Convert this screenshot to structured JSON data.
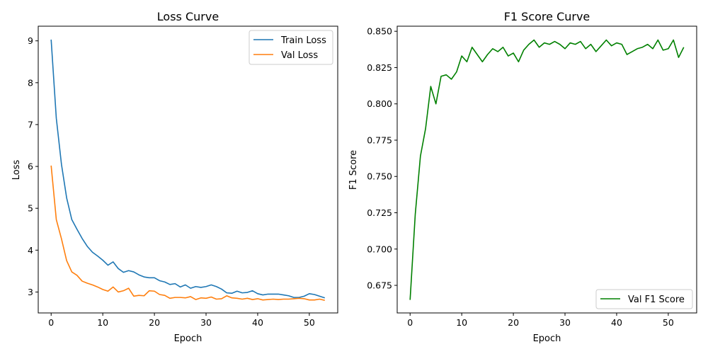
{
  "chart_data": [
    {
      "type": "line",
      "title": "Loss Curve",
      "xlabel": "Epoch",
      "ylabel": "Loss",
      "xlim": [
        -2.5,
        55.5
      ],
      "ylim": [
        2.5,
        9.35
      ],
      "xticks": [
        0,
        10,
        20,
        30,
        40,
        50
      ],
      "yticks": [
        3,
        4,
        5,
        6,
        7,
        8,
        9
      ],
      "legend_position": "top-right",
      "x": [
        0,
        1,
        2,
        3,
        4,
        5,
        6,
        7,
        8,
        9,
        10,
        11,
        12,
        13,
        14,
        15,
        16,
        17,
        18,
        19,
        20,
        21,
        22,
        23,
        24,
        25,
        26,
        27,
        28,
        29,
        30,
        31,
        32,
        33,
        34,
        35,
        36,
        37,
        38,
        39,
        40,
        41,
        42,
        43,
        44,
        45,
        46,
        47,
        48,
        49,
        50,
        51,
        52,
        53
      ],
      "series": [
        {
          "name": "Train Loss",
          "color": "#1f77b4",
          "values": [
            9.03,
            7.15,
            6.05,
            5.25,
            4.73,
            4.5,
            4.28,
            4.09,
            3.95,
            3.86,
            3.76,
            3.64,
            3.72,
            3.56,
            3.47,
            3.51,
            3.48,
            3.41,
            3.36,
            3.34,
            3.34,
            3.27,
            3.24,
            3.18,
            3.2,
            3.12,
            3.17,
            3.09,
            3.13,
            3.11,
            3.13,
            3.17,
            3.13,
            3.07,
            2.98,
            2.97,
            3.02,
            2.98,
            2.99,
            3.03,
            2.96,
            2.93,
            2.95,
            2.95,
            2.95,
            2.93,
            2.91,
            2.87,
            2.87,
            2.9,
            2.96,
            2.94,
            2.9,
            2.86
          ]
        },
        {
          "name": "Val Loss",
          "color": "#ff7f0e",
          "values": [
            6.02,
            4.73,
            4.27,
            3.75,
            3.48,
            3.4,
            3.26,
            3.21,
            3.17,
            3.12,
            3.06,
            3.02,
            3.12,
            3.0,
            3.03,
            3.09,
            2.9,
            2.92,
            2.91,
            3.03,
            3.02,
            2.94,
            2.92,
            2.85,
            2.87,
            2.87,
            2.86,
            2.89,
            2.82,
            2.86,
            2.85,
            2.88,
            2.83,
            2.84,
            2.91,
            2.86,
            2.85,
            2.83,
            2.85,
            2.82,
            2.84,
            2.81,
            2.82,
            2.83,
            2.82,
            2.83,
            2.83,
            2.84,
            2.85,
            2.84,
            2.81,
            2.81,
            2.83,
            2.8
          ]
        }
      ]
    },
    {
      "type": "line",
      "title": "F1 Score Curve",
      "xlabel": "Epoch",
      "ylabel": "F1 Score",
      "xlim": [
        -2.5,
        55.5
      ],
      "ylim": [
        0.656,
        0.8535
      ],
      "xticks": [
        0,
        10,
        20,
        30,
        40,
        50
      ],
      "yticks": [
        0.675,
        0.7,
        0.725,
        0.75,
        0.775,
        0.8,
        0.825,
        0.85
      ],
      "ytick_labels": [
        "0.675",
        "0.700",
        "0.725",
        "0.750",
        "0.775",
        "0.800",
        "0.825",
        "0.850"
      ],
      "legend_position": "bottom-right",
      "x": [
        0,
        1,
        2,
        3,
        4,
        5,
        6,
        7,
        8,
        9,
        10,
        11,
        12,
        13,
        14,
        15,
        16,
        17,
        18,
        19,
        20,
        21,
        22,
        23,
        24,
        25,
        26,
        27,
        28,
        29,
        30,
        31,
        32,
        33,
        34,
        35,
        36,
        37,
        38,
        39,
        40,
        41,
        42,
        43,
        44,
        45,
        46,
        47,
        48,
        49,
        50,
        51,
        52,
        53
      ],
      "series": [
        {
          "name": "Val F1 Score",
          "color": "#008000",
          "values": [
            0.665,
            0.724,
            0.764,
            0.783,
            0.812,
            0.8,
            0.819,
            0.82,
            0.817,
            0.822,
            0.833,
            0.829,
            0.839,
            0.834,
            0.829,
            0.834,
            0.838,
            0.836,
            0.839,
            0.833,
            0.835,
            0.829,
            0.837,
            0.841,
            0.844,
            0.839,
            0.842,
            0.841,
            0.843,
            0.841,
            0.838,
            0.842,
            0.841,
            0.843,
            0.838,
            0.841,
            0.836,
            0.84,
            0.844,
            0.84,
            0.842,
            0.841,
            0.834,
            0.836,
            0.838,
            0.839,
            0.841,
            0.838,
            0.844,
            0.837,
            0.838,
            0.844,
            0.832,
            0.839
          ]
        }
      ]
    }
  ]
}
